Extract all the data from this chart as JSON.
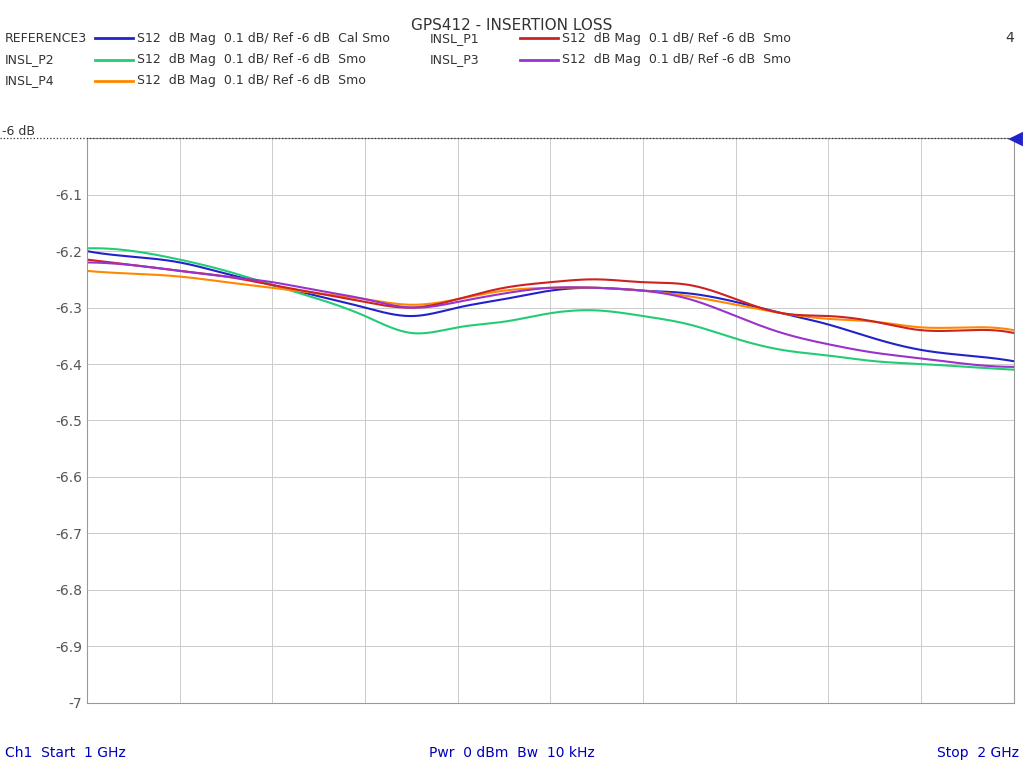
{
  "title": "GPS412 - INSERTION LOSS",
  "bg_color": "#ffffff",
  "plot_bg_color": "#ffffff",
  "grid_color": "#cccccc",
  "xmin": 1.0,
  "xmax": 2.0,
  "ymin": -7.0,
  "ymax": -6.0,
  "yticks": [
    -7.0,
    -6.9,
    -6.8,
    -6.7,
    -6.6,
    -6.5,
    -6.4,
    -6.3,
    -6.2,
    -6.1,
    -6.0
  ],
  "ytick_labels": [
    "-7",
    "-6.9",
    "-6.8",
    "-6.7",
    "-6.6",
    "-6.5",
    "-6.4",
    "-6.3",
    "-6.2",
    "-6.1",
    ""
  ],
  "ref_line_label": "-6 dB",
  "bottom_left": "Ch1  Start  1 GHz",
  "bottom_center": "Pwr  0 dBm  Bw  10 kHz",
  "bottom_right": "Stop  2 GHz",
  "legend_rows": [
    [
      {
        "name": "REFERENCE3",
        "desc": "S12  dB Mag  0.1 dB/ Ref -6 dB  Cal Smo",
        "color": "#2222cc"
      },
      {
        "name": "INSL_P1",
        "desc": "S12  dB Mag  0.1 dB/ Ref -6 dB  Smo",
        "color": "#cc2222"
      }
    ],
    [
      {
        "name": "INSL_P2",
        "desc": "S12  dB Mag  0.1 dB/ Ref -6 dB  Smo",
        "color": "#22cc77"
      },
      {
        "name": "INSL_P3",
        "desc": "S12  dB Mag  0.1 dB/ Ref -6 dB  Smo",
        "color": "#9933cc"
      }
    ],
    [
      {
        "name": "INSL_P4",
        "desc": "S12  dB Mag  0.1 dB/ Ref -6 dB  Smo",
        "color": "#ff8800"
      }
    ]
  ],
  "extra_label": "4",
  "arrow_colors": [
    "#2222cc",
    "#cc2222",
    "#22cc77",
    "#9933cc",
    "#ff8800"
  ],
  "traces": {
    "REFERENCE3": {
      "color": "#2222cc",
      "x": [
        1.0,
        1.05,
        1.1,
        1.15,
        1.2,
        1.25,
        1.3,
        1.35,
        1.4,
        1.45,
        1.5,
        1.55,
        1.6,
        1.65,
        1.7,
        1.75,
        1.8,
        1.85,
        1.9,
        1.95,
        2.0
      ],
      "y": [
        -6.2,
        -6.21,
        -6.22,
        -6.24,
        -6.26,
        -6.28,
        -6.3,
        -6.315,
        -6.3,
        -6.285,
        -6.27,
        -6.265,
        -6.27,
        -6.275,
        -6.29,
        -6.31,
        -6.33,
        -6.355,
        -6.375,
        -6.385,
        -6.395
      ]
    },
    "INSL_P1": {
      "color": "#cc2222",
      "x": [
        1.0,
        1.05,
        1.1,
        1.15,
        1.2,
        1.25,
        1.3,
        1.35,
        1.4,
        1.45,
        1.5,
        1.55,
        1.6,
        1.65,
        1.7,
        1.75,
        1.8,
        1.85,
        1.9,
        1.95,
        2.0
      ],
      "y": [
        -6.215,
        -6.225,
        -6.235,
        -6.245,
        -6.26,
        -6.275,
        -6.29,
        -6.3,
        -6.285,
        -6.265,
        -6.255,
        -6.25,
        -6.255,
        -6.26,
        -6.285,
        -6.31,
        -6.315,
        -6.325,
        -6.34,
        -6.34,
        -6.345
      ]
    },
    "INSL_P2": {
      "color": "#22cc77",
      "x": [
        1.0,
        1.05,
        1.1,
        1.15,
        1.2,
        1.25,
        1.3,
        1.35,
        1.4,
        1.45,
        1.5,
        1.55,
        1.6,
        1.65,
        1.7,
        1.75,
        1.8,
        1.85,
        1.9,
        1.95,
        2.0
      ],
      "y": [
        -6.195,
        -6.2,
        -6.215,
        -6.235,
        -6.26,
        -6.285,
        -6.315,
        -6.345,
        -6.335,
        -6.325,
        -6.31,
        -6.305,
        -6.315,
        -6.33,
        -6.355,
        -6.375,
        -6.385,
        -6.395,
        -6.4,
        -6.405,
        -6.41
      ]
    },
    "INSL_P3": {
      "color": "#9933cc",
      "x": [
        1.0,
        1.05,
        1.1,
        1.15,
        1.2,
        1.25,
        1.3,
        1.35,
        1.4,
        1.45,
        1.5,
        1.55,
        1.6,
        1.65,
        1.7,
        1.75,
        1.8,
        1.85,
        1.9,
        1.95,
        2.0
      ],
      "y": [
        -6.22,
        -6.225,
        -6.235,
        -6.245,
        -6.255,
        -6.27,
        -6.285,
        -6.3,
        -6.29,
        -6.275,
        -6.265,
        -6.265,
        -6.27,
        -6.285,
        -6.315,
        -6.345,
        -6.365,
        -6.38,
        -6.39,
        -6.4,
        -6.405
      ]
    },
    "INSL_P4": {
      "color": "#ff8800",
      "x": [
        1.0,
        1.05,
        1.1,
        1.15,
        1.2,
        1.25,
        1.3,
        1.35,
        1.4,
        1.45,
        1.5,
        1.55,
        1.6,
        1.65,
        1.7,
        1.75,
        1.8,
        1.85,
        1.9,
        1.95,
        2.0
      ],
      "y": [
        -6.235,
        -6.24,
        -6.245,
        -6.255,
        -6.265,
        -6.275,
        -6.285,
        -6.295,
        -6.285,
        -6.27,
        -6.265,
        -6.265,
        -6.27,
        -6.28,
        -6.295,
        -6.31,
        -6.32,
        -6.325,
        -6.335,
        -6.335,
        -6.34
      ]
    }
  }
}
